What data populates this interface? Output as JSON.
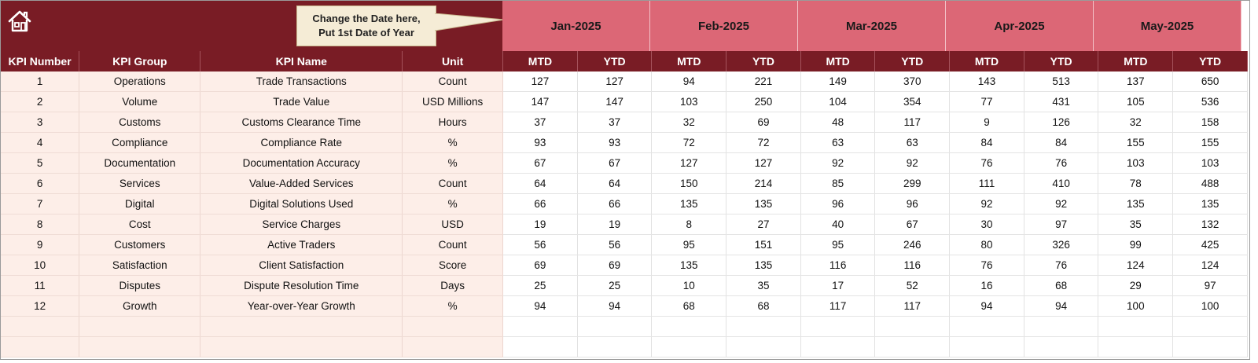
{
  "callout": {
    "line1": "Change the Date here,",
    "line2": "Put 1st Date of Year"
  },
  "months": [
    "Jan-2025",
    "Feb-2025",
    "Mar-2025",
    "Apr-2025",
    "May-2025"
  ],
  "info_headers": [
    "KPI Number",
    "KPI Group",
    "KPI Name",
    "Unit"
  ],
  "sub_headers": [
    "MTD",
    "YTD"
  ],
  "rows": [
    {
      "num": "1",
      "group": "Operations",
      "name": "Trade Transactions",
      "unit": "Count",
      "values": [
        "127",
        "127",
        "94",
        "221",
        "149",
        "370",
        "143",
        "513",
        "137",
        "650"
      ]
    },
    {
      "num": "2",
      "group": "Volume",
      "name": "Trade Value",
      "unit": "USD Millions",
      "values": [
        "147",
        "147",
        "103",
        "250",
        "104",
        "354",
        "77",
        "431",
        "105",
        "536"
      ]
    },
    {
      "num": "3",
      "group": "Customs",
      "name": "Customs Clearance Time",
      "unit": "Hours",
      "values": [
        "37",
        "37",
        "32",
        "69",
        "48",
        "117",
        "9",
        "126",
        "32",
        "158"
      ]
    },
    {
      "num": "4",
      "group": "Compliance",
      "name": "Compliance Rate",
      "unit": "%",
      "values": [
        "93",
        "93",
        "72",
        "72",
        "63",
        "63",
        "84",
        "84",
        "155",
        "155"
      ]
    },
    {
      "num": "5",
      "group": "Documentation",
      "name": "Documentation Accuracy",
      "unit": "%",
      "values": [
        "67",
        "67",
        "127",
        "127",
        "92",
        "92",
        "76",
        "76",
        "103",
        "103"
      ]
    },
    {
      "num": "6",
      "group": "Services",
      "name": "Value-Added Services",
      "unit": "Count",
      "values": [
        "64",
        "64",
        "150",
        "214",
        "85",
        "299",
        "111",
        "410",
        "78",
        "488"
      ]
    },
    {
      "num": "7",
      "group": "Digital",
      "name": "Digital Solutions Used",
      "unit": "%",
      "values": [
        "66",
        "66",
        "135",
        "135",
        "96",
        "96",
        "92",
        "92",
        "135",
        "135"
      ]
    },
    {
      "num": "8",
      "group": "Cost",
      "name": "Service Charges",
      "unit": "USD",
      "values": [
        "19",
        "19",
        "8",
        "27",
        "40",
        "67",
        "30",
        "97",
        "35",
        "132"
      ]
    },
    {
      "num": "9",
      "group": "Customers",
      "name": "Active Traders",
      "unit": "Count",
      "values": [
        "56",
        "56",
        "95",
        "151",
        "95",
        "246",
        "80",
        "326",
        "99",
        "425"
      ]
    },
    {
      "num": "10",
      "group": "Satisfaction",
      "name": "Client Satisfaction",
      "unit": "Score",
      "values": [
        "69",
        "69",
        "135",
        "135",
        "116",
        "116",
        "76",
        "76",
        "124",
        "124"
      ]
    },
    {
      "num": "11",
      "group": "Disputes",
      "name": "Dispute Resolution Time",
      "unit": "Days",
      "values": [
        "25",
        "25",
        "10",
        "35",
        "17",
        "52",
        "16",
        "68",
        "29",
        "97"
      ]
    },
    {
      "num": "12",
      "group": "Growth",
      "name": "Year-over-Year Growth",
      "unit": "%",
      "values": [
        "94",
        "94",
        "68",
        "68",
        "117",
        "117",
        "94",
        "94",
        "100",
        "100"
      ]
    }
  ],
  "blank_rows": 2,
  "colors": {
    "banner": "#791c25",
    "month_header": "#dc6776",
    "info_cell": "#fdeee8",
    "callout": "#f5ecd6"
  },
  "icons": {
    "home": "home-icon"
  }
}
